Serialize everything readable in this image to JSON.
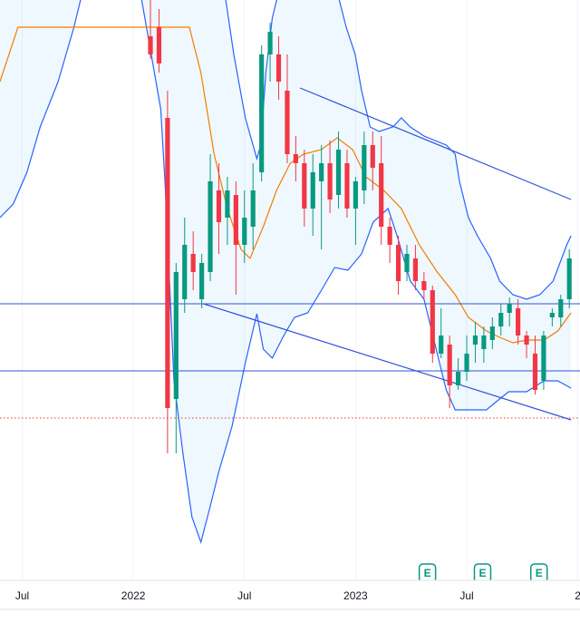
{
  "chart_data": {
    "type": "candlestick",
    "up_color": "#089981",
    "down_color": "#f23645",
    "xlim": [
      -5.2,
      130.5
    ],
    "ylim": [
      0,
      640
    ],
    "xticks": [
      {
        "value": 0,
        "label": "Jul"
      },
      {
        "value": 26,
        "label": "2022"
      },
      {
        "value": 52,
        "label": "Jul"
      },
      {
        "value": 78,
        "label": "2023"
      },
      {
        "value": 104,
        "label": "Jul"
      },
      {
        "value": 130,
        "label": "2"
      }
    ],
    "grid": true,
    "x": [
      30,
      32,
      34,
      36,
      38,
      40,
      42,
      44,
      46,
      48,
      50,
      52,
      54,
      56,
      58,
      60,
      62,
      64,
      66,
      68,
      70,
      72,
      74,
      76,
      78,
      80,
      82,
      84,
      86,
      88,
      90,
      92,
      94,
      96,
      98,
      100,
      102,
      104,
      106,
      108,
      110,
      112,
      114,
      116,
      118,
      120,
      122,
      124,
      126,
      128
    ],
    "open": [
      600,
      610,
      510,
      200,
      310,
      360,
      310,
      340,
      430,
      400,
      425,
      370,
      390,
      450,
      580,
      580,
      540,
      470,
      460,
      410,
      440,
      460,
      425,
      460,
      410,
      430,
      480,
      460,
      390,
      370,
      340,
      355,
      330,
      320,
      250,
      260,
      215,
      230,
      260,
      255,
      265,
      280,
      295,
      300,
      270,
      250,
      220,
      290,
      290,
      310
    ],
    "high": [
      650,
      630,
      540,
      350,
      400,
      385,
      360,
      470,
      460,
      445,
      440,
      430,
      460,
      590,
      615,
      600,
      580,
      490,
      475,
      470,
      480,
      485,
      495,
      475,
      445,
      495,
      495,
      490,
      400,
      380,
      370,
      370,
      340,
      325,
      300,
      270,
      245,
      270,
      285,
      280,
      290,
      305,
      312,
      310,
      275,
      270,
      275,
      300,
      315,
      365
    ],
    "low": [
      575,
      560,
      140,
      140,
      295,
      320,
      300,
      330,
      360,
      370,
      315,
      350,
      365,
      440,
      550,
      530,
      460,
      440,
      390,
      380,
      365,
      405,
      410,
      400,
      370,
      415,
      430,
      370,
      350,
      315,
      330,
      320,
      310,
      240,
      245,
      190,
      210,
      220,
      240,
      240,
      255,
      270,
      280,
      260,
      245,
      205,
      210,
      280,
      280,
      300
    ],
    "close": [
      580,
      570,
      190,
      340,
      370,
      340,
      350,
      440,
      395,
      430,
      370,
      400,
      430,
      580,
      605,
      550,
      470,
      460,
      410,
      450,
      460,
      420,
      475,
      410,
      440,
      480,
      455,
      390,
      370,
      330,
      360,
      330,
      320,
      250,
      270,
      215,
      230,
      250,
      270,
      270,
      280,
      295,
      305,
      270,
      260,
      210,
      270,
      295,
      310,
      355
    ],
    "bands": [
      {
        "color": "#2962ff",
        "x": [
          -5.2,
          -2.1,
          1.1,
          4.2,
          8.4,
          12.1,
          15.7,
          26.1,
          32.4,
          33.4,
          35.5,
          37.6,
          39.7,
          41.8,
          43.9,
          46,
          49.1,
          52.2,
          54.9,
          56.4,
          58.5,
          61.2,
          63.7,
          66.8,
          70,
          73.1,
          76.2,
          79.4,
          82.1,
          85.6,
          87.7,
          90.8,
          94,
          97.1,
          99.2,
          101.3,
          104.4,
          108.6,
          111.7,
          113.8,
          118,
          122.1,
          125.3,
          128.4
        ],
        "values": [
          400,
          415,
          450,
          500,
          550,
          610,
          680,
          690,
          520,
          440,
          220,
          140,
          70,
          42,
          80,
          120,
          170,
          240,
          294,
          255,
          245,
          270,
          290,
          295,
          320,
          345,
          342,
          360,
          395,
          410,
          380,
          330,
          310,
          250,
          210,
          188,
          188,
          188,
          200,
          208,
          208,
          220,
          220,
          212
        ]
      },
      {
        "color": "#2962ff",
        "x": [
          -5.2,
          47,
          49.5,
          52.2,
          54.9,
          55.8,
          57,
          58.5,
          61.6,
          72,
          75.8,
          77.9,
          79.4,
          81.4,
          83.5,
          86.7,
          88.7,
          90.8,
          94,
          99.2,
          101.3,
          102.3,
          104.4,
          106.5,
          109.6,
          111.7,
          114.8,
          118,
          121.1,
          124.2,
          127.4,
          128.4
        ],
        "values": [
          720,
          660,
          580,
          510,
          465,
          480,
          560,
          620,
          680,
          680,
          610,
          580,
          540,
          500,
          495,
          500,
          510,
          500,
          490,
          480,
          470,
          440,
          400,
          380,
          355,
          330,
          315,
          310,
          315,
          330,
          370,
          380
        ]
      },
      {
        "color": "#f57c00",
        "x": [
          -5.2,
          -1,
          39.1,
          41.8,
          44.9,
          48,
          51.2,
          53.3,
          56.4,
          59.5,
          62.7,
          65.8,
          70,
          73.7,
          77.3,
          80.4,
          84.6,
          88.7,
          92.9,
          97.1,
          101.3,
          104.4,
          108.6,
          111.7,
          114.8,
          118,
          122.1,
          125.3,
          128.4
        ],
        "values": [
          550,
          610,
          610,
          560,
          470,
          410,
          365,
          355,
          390,
          430,
          460,
          470,
          475,
          488,
          475,
          445,
          430,
          410,
          370,
          340,
          315,
          290,
          275,
          268,
          262,
          265,
          265,
          275,
          295
        ]
      }
    ],
    "trendlines": [
      {
        "color": "#3153d8",
        "x": [
          65,
          128.4
        ],
        "y": [
          543,
          420
        ]
      },
      {
        "color": "#3153d8",
        "x": [
          42.4,
          128.4
        ],
        "y": [
          305,
          177
        ]
      }
    ],
    "hlines": [
      {
        "color": "#3153d8",
        "value": 305
      },
      {
        "color": "#3153d8",
        "value": 231
      },
      {
        "color": "#e53935",
        "value": 179,
        "dotted": true
      }
    ],
    "events": [
      {
        "x": 94.8,
        "label": "E"
      },
      {
        "x": 107.7,
        "label": "E"
      },
      {
        "x": 120.9,
        "label": "E"
      }
    ]
  }
}
